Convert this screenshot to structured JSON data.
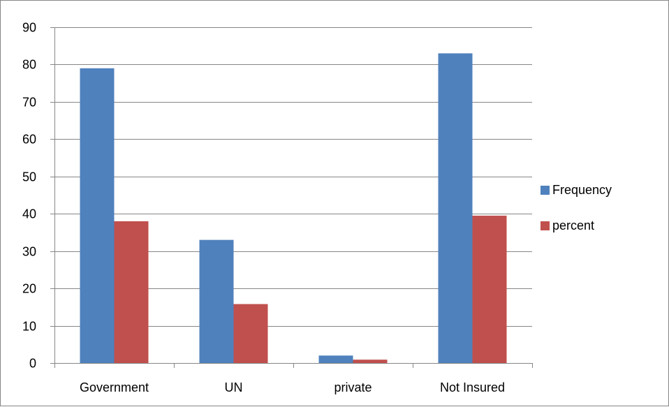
{
  "chart_data": {
    "type": "bar",
    "title": "",
    "xlabel": "",
    "ylabel": "",
    "categories": [
      "Government",
      "UN",
      "private",
      "Not Insured"
    ],
    "series": [
      {
        "name": "Frequency",
        "color": "#4F81BD",
        "values": [
          79,
          33,
          2,
          83
        ]
      },
      {
        "name": "percent",
        "color": "#C0504D",
        "values": [
          38,
          15.8,
          0.9,
          39.5
        ]
      }
    ],
    "ylim": [
      0,
      90
    ],
    "yticks": [
      0,
      10,
      20,
      30,
      40,
      50,
      60,
      70,
      80,
      90
    ],
    "grid": true,
    "grid_color": "#868686",
    "legend": "right"
  }
}
